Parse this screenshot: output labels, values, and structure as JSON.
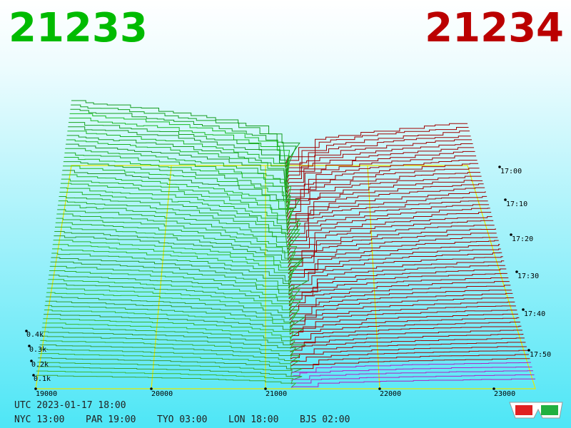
{
  "header": {
    "bid": "21233",
    "ask": "21234"
  },
  "axes": {
    "depth_labels": [
      "0.4k",
      "0.3k",
      "0.2k",
      "0.1k"
    ],
    "price_labels": [
      "19000",
      "20000",
      "21000",
      "22000",
      "23000"
    ],
    "time_labels": [
      "17:00",
      "17:10",
      "17:20",
      "17:30",
      "17:40",
      "17:50"
    ]
  },
  "footer": {
    "utc": "UTC 2023-01-17 18:00",
    "zones": [
      "NYC 13:00",
      "PAR 19:00",
      "TYO 03:00",
      "LON 18:00",
      "BJS 02:00"
    ]
  }
}
